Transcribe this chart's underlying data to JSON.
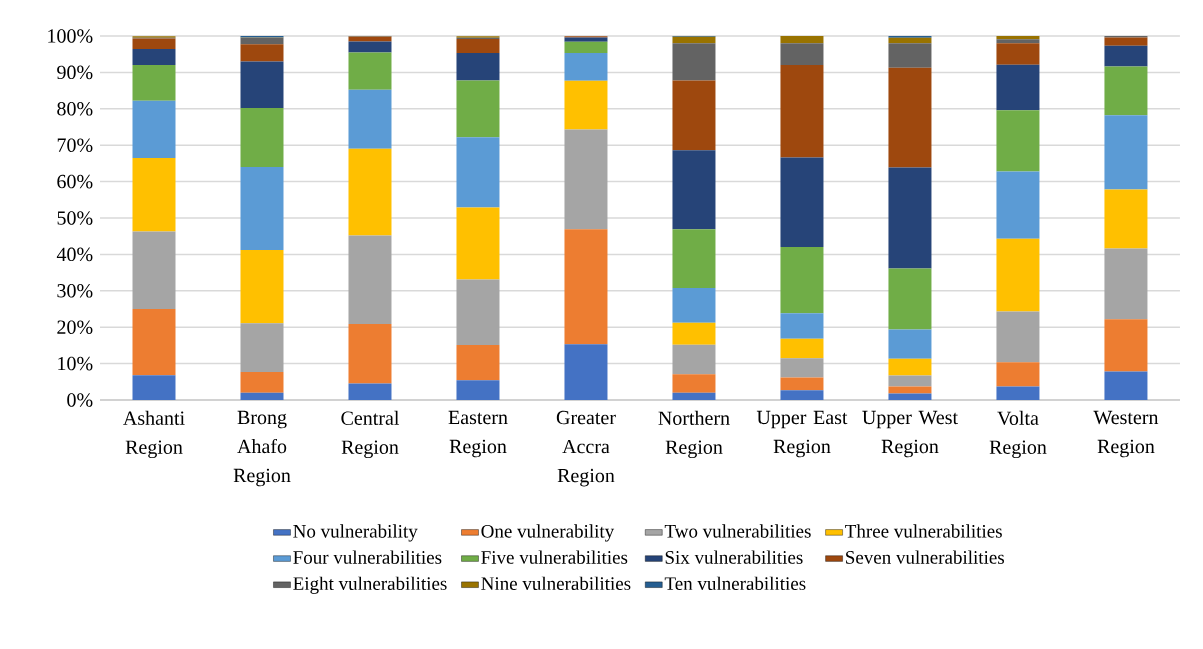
{
  "chart_data": {
    "type": "bar",
    "stacked": true,
    "categories": [
      "Ashanti Region",
      "Brong Ahafo Region",
      "Central Region",
      "Eastern Region",
      "Greater Accra Region",
      "Northern Region",
      "Upper East Region",
      "Upper West Region",
      "Volta Region",
      "Western Region"
    ],
    "series": [
      {
        "name": "No vulnerability",
        "color": "#4472c4",
        "values": [
          6.8,
          2.0,
          4.5,
          5.4,
          15.3,
          2.0,
          2.7,
          1.8,
          3.7,
          7.8
        ]
      },
      {
        "name": "One vulnerability",
        "color": "#ed7d31",
        "values": [
          18.2,
          5.7,
          16.4,
          9.7,
          31.6,
          5.1,
          3.5,
          1.9,
          6.7,
          14.4
        ]
      },
      {
        "name": "Two vulnerabilities",
        "color": "#a5a5a5",
        "values": [
          21.3,
          13.4,
          24.3,
          18.0,
          27.4,
          8.1,
          5.3,
          3.0,
          13.9,
          19.4
        ]
      },
      {
        "name": "Three vulnerabilities",
        "color": "#ffc000",
        "values": [
          20.2,
          20.1,
          23.8,
          19.8,
          13.4,
          6.0,
          5.3,
          4.6,
          20.0,
          16.2
        ]
      },
      {
        "name": "Four vulnerabilities",
        "color": "#5b9bd5",
        "values": [
          15.7,
          22.8,
          16.2,
          19.3,
          7.6,
          9.6,
          7.0,
          8.1,
          18.5,
          20.4
        ]
      },
      {
        "name": "Five vulnerabilities",
        "color": "#70ad47",
        "values": [
          9.8,
          16.2,
          10.3,
          15.6,
          3.1,
          16.1,
          18.2,
          16.7,
          16.8,
          13.4
        ]
      },
      {
        "name": "Six vulnerabilities",
        "color": "#264478",
        "values": [
          4.4,
          12.8,
          3.0,
          7.5,
          1.2,
          21.7,
          24.6,
          27.8,
          12.5,
          5.7
        ]
      },
      {
        "name": "Seven vulnerabilities",
        "color": "#9e480e",
        "values": [
          2.9,
          4.7,
          1.3,
          3.9,
          0.3,
          19.2,
          25.4,
          27.4,
          5.9,
          2.3
        ]
      },
      {
        "name": "Eight vulnerabilities",
        "color": "#636363",
        "values": [
          0.2,
          1.8,
          0.1,
          0.3,
          null,
          10.2,
          6.0,
          6.7,
          1.1,
          0.4
        ]
      },
      {
        "name": "Nine vulnerabilities",
        "color": "#997300",
        "values": [
          0.4,
          0.1,
          0.1,
          0.4,
          0,
          1.8,
          2.0,
          1.5,
          0.9,
          0
        ]
      },
      {
        "name": "Ten vulnerabilities",
        "color": "#255e91",
        "values": [
          null,
          0.4,
          0,
          null,
          0,
          0.2,
          0,
          0.5,
          0,
          0
        ]
      }
    ],
    "ylim": [
      0,
      100
    ],
    "yticks": [
      {
        "value": 0,
        "label": "0%"
      },
      {
        "value": 10,
        "label": "10%"
      },
      {
        "value": 20,
        "label": "20%"
      },
      {
        "value": 30,
        "label": "30%"
      },
      {
        "value": 40,
        "label": "40%"
      },
      {
        "value": 50,
        "label": "50%"
      },
      {
        "value": 60,
        "label": "60%"
      },
      {
        "value": 70,
        "label": "70%"
      },
      {
        "value": 80,
        "label": "80%"
      },
      {
        "value": 90,
        "label": "90%"
      },
      {
        "value": 100,
        "label": "100%"
      }
    ],
    "grid": "y",
    "legend": "bottom"
  }
}
